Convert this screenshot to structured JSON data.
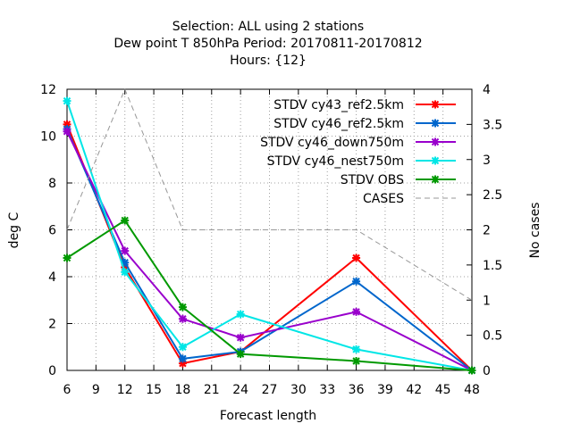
{
  "chart_data": {
    "type": "line",
    "title_lines": [
      "Selection: ALL using     2 stations",
      "Dew point T 850hPa   Period: 20170811-20170812",
      "Hours: {12}"
    ],
    "xlabel": "Forecast length",
    "ylabel": "deg C",
    "y2label": "No cases",
    "xlim": [
      6,
      48
    ],
    "ylim": [
      0,
      12
    ],
    "y2lim": [
      0,
      4
    ],
    "xticks": [
      6,
      9,
      12,
      15,
      18,
      21,
      24,
      27,
      30,
      33,
      36,
      39,
      42,
      45,
      48
    ],
    "yticks": [
      0,
      2,
      4,
      6,
      8,
      10,
      12
    ],
    "y2ticks": [
      "0",
      "0.5",
      "1",
      "1.5",
      "2",
      "2.5",
      "3",
      "3.5",
      "4"
    ],
    "grid": true,
    "legend_position": "top-right",
    "series": [
      {
        "name": "STDV cy43_ref2.5km",
        "color": "#ff0000",
        "marker": "x",
        "axis": "y",
        "x": [
          6,
          12,
          18,
          24,
          36,
          48
        ],
        "y": [
          10.5,
          4.4,
          0.3,
          0.8,
          4.8,
          0.0
        ]
      },
      {
        "name": "STDV cy46_ref2.5km",
        "color": "#0066cc",
        "marker": "x",
        "axis": "y",
        "x": [
          6,
          12,
          18,
          24,
          36,
          48
        ],
        "y": [
          10.3,
          4.6,
          0.5,
          0.8,
          3.8,
          0.0
        ]
      },
      {
        "name": "STDV cy46_down750m",
        "color": "#9900cc",
        "marker": "x",
        "axis": "y",
        "x": [
          6,
          12,
          18,
          24,
          36,
          48
        ],
        "y": [
          10.2,
          5.1,
          2.2,
          1.4,
          2.5,
          0.0
        ]
      },
      {
        "name": "STDV cy46_nest750m",
        "color": "#00e6e6",
        "marker": "x",
        "axis": "y",
        "x": [
          6,
          12,
          18,
          24,
          36,
          48
        ],
        "y": [
          11.5,
          4.2,
          1.0,
          2.4,
          0.9,
          0.0
        ]
      },
      {
        "name": "STDV OBS",
        "color": "#009900",
        "marker": "x",
        "axis": "y",
        "x": [
          6,
          12,
          18,
          24,
          36,
          48
        ],
        "y": [
          4.8,
          6.4,
          2.7,
          0.7,
          0.4,
          0.0
        ]
      },
      {
        "name": "CASES",
        "color": "#999999",
        "marker": "none",
        "dash": true,
        "axis": "y2",
        "x": [
          6,
          12,
          18,
          24,
          36,
          48
        ],
        "y": [
          2,
          4,
          2,
          2,
          2,
          1
        ]
      }
    ]
  }
}
